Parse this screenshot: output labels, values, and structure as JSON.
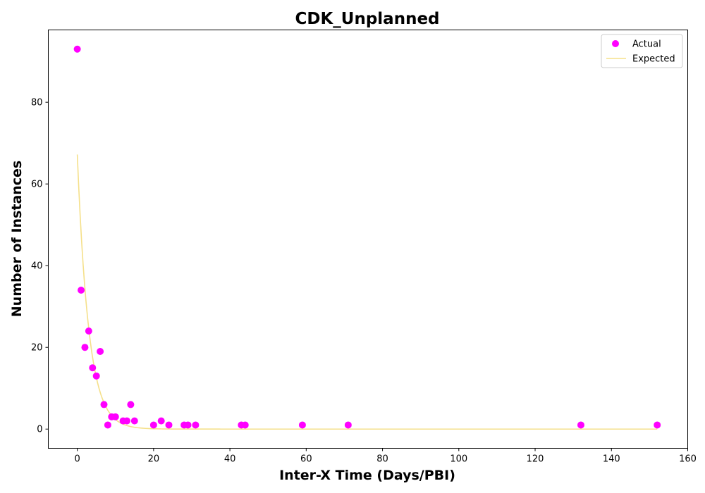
{
  "chart_data": {
    "type": "scatter",
    "title": "CDK_Unplanned",
    "xlabel": "Inter-X Time (Days/PBI)",
    "ylabel": "Number of Instances",
    "xlim": [
      -7.6,
      160
    ],
    "ylim": [
      -4.7,
      97.7
    ],
    "xticks": [
      0,
      20,
      40,
      60,
      80,
      100,
      120,
      140,
      160
    ],
    "yticks": [
      0,
      20,
      40,
      60,
      80
    ],
    "grid": false,
    "legend_position": "top-right",
    "series": [
      {
        "name": "Actual",
        "kind": "scatter",
        "color": "#ff00ff",
        "points": [
          [
            0,
            93
          ],
          [
            1,
            34
          ],
          [
            2,
            20
          ],
          [
            3,
            24
          ],
          [
            4,
            15
          ],
          [
            5,
            13
          ],
          [
            6,
            19
          ],
          [
            7,
            6
          ],
          [
            8,
            1
          ],
          [
            9,
            3
          ],
          [
            10,
            3
          ],
          [
            12,
            2
          ],
          [
            13,
            2
          ],
          [
            14,
            6
          ],
          [
            15,
            2
          ],
          [
            20,
            1
          ],
          [
            22,
            2
          ],
          [
            24,
            1
          ],
          [
            28,
            1
          ],
          [
            29,
            1
          ],
          [
            31,
            1
          ],
          [
            43,
            1
          ],
          [
            44,
            1
          ],
          [
            59,
            1
          ],
          [
            71,
            1
          ],
          [
            132,
            1
          ],
          [
            152,
            1
          ]
        ]
      },
      {
        "name": "Expected",
        "kind": "line",
        "color": "#f5e08a",
        "amplitude": 67.2,
        "rate": 0.335,
        "x_range": [
          0,
          152
        ]
      }
    ]
  }
}
